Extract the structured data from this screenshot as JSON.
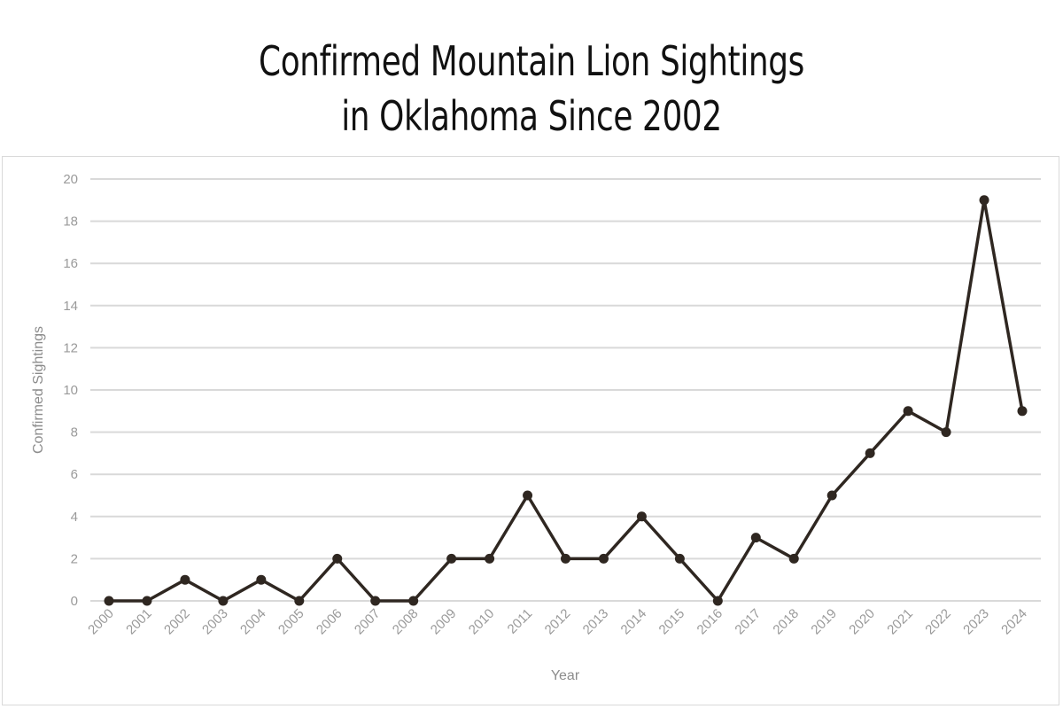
{
  "chart_data": {
    "type": "line",
    "title": [
      "Confirmed Mountain Lion Sightings",
      "in Oklahoma Since 2002"
    ],
    "xlabel": "Year",
    "ylabel": "Confirmed Sightings",
    "x": [
      "2000",
      "2001",
      "2002",
      "2003",
      "2004",
      "2005",
      "2006",
      "2007",
      "2008",
      "2009",
      "2010",
      "2011",
      "2012",
      "2013",
      "2014",
      "2015",
      "2016",
      "2017",
      "2018",
      "2019",
      "2020",
      "2021",
      "2022",
      "2023",
      "2024"
    ],
    "series": [
      {
        "values": [
          0,
          0,
          1,
          0,
          1,
          0,
          2,
          0,
          0,
          2,
          2,
          5,
          2,
          2,
          4,
          2,
          0,
          3,
          2,
          5,
          7,
          9,
          8,
          19,
          9
        ]
      }
    ],
    "ylim": [
      0,
      20
    ],
    "yticks": [
      0,
      2,
      4,
      6,
      8,
      10,
      12,
      14,
      16,
      18,
      20
    ],
    "grid": true,
    "legend": "none",
    "colors": {
      "line": "#2f2721",
      "grid": "#d9d9d9",
      "tick_text": "#9a9a9a"
    }
  }
}
